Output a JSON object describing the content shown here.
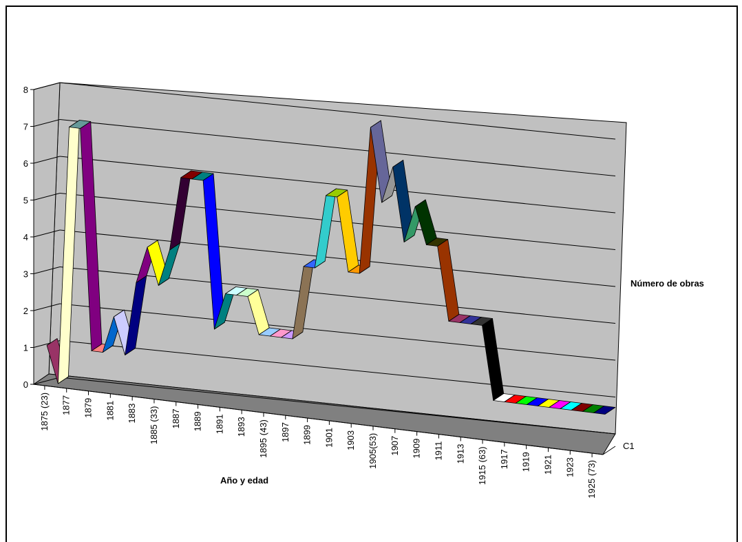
{
  "chart_data": {
    "type": "line",
    "style": "3d-ribbon",
    "xlabel": "Año y edad",
    "ylabel": "",
    "side_label": "Número de obras",
    "depth_label": "C1",
    "ylim": [
      0,
      8
    ],
    "yticks": [
      "0",
      "1",
      "2",
      "3",
      "4",
      "5",
      "6",
      "7",
      "8"
    ],
    "grid": true,
    "tick_labels": [
      "1875 (23)",
      "1877",
      "1879",
      "1881",
      "1883",
      "1885 (33)",
      "1887",
      "1889",
      "1891",
      "1893",
      "1895 (43)",
      "1897",
      "1899",
      "1901",
      "1903",
      "1905(53)",
      "1907",
      "1909",
      "1911",
      "1913",
      "1915 (63)",
      "1917",
      "1919",
      "1921",
      "1923",
      "1925 (73)"
    ],
    "x": [
      1875,
      1876,
      1877,
      1878,
      1879,
      1880,
      1881,
      1882,
      1883,
      1884,
      1885,
      1886,
      1887,
      1888,
      1889,
      1890,
      1891,
      1892,
      1893,
      1894,
      1895,
      1896,
      1897,
      1898,
      1899,
      1900,
      1901,
      1902,
      1903,
      1904,
      1905,
      1906,
      1907,
      1908,
      1909,
      1910,
      1911,
      1912,
      1913,
      1914,
      1915,
      1916,
      1917,
      1918,
      1919,
      1920,
      1921,
      1922,
      1923,
      1924,
      1925
    ],
    "series": [
      {
        "values": [
          1,
          0,
          7,
          7,
          1,
          1,
          2,
          1,
          3,
          4,
          3,
          4,
          6,
          6,
          6,
          2,
          3,
          3,
          3,
          2,
          2,
          2,
          2,
          4,
          4,
          6,
          6,
          4,
          4,
          8,
          6,
          7,
          5,
          6,
          5,
          5,
          3,
          3,
          3,
          3,
          1,
          1,
          1,
          1,
          1,
          1,
          1,
          1,
          1,
          1,
          1
        ]
      }
    ],
    "segment_colors": [
      "#993366",
      "#FFFFCC",
      "#669999",
      "#800080",
      "#FF8080",
      "#0066CC",
      "#CCCCFF",
      "#000080",
      "#800080",
      "#FFFF00",
      "#008080",
      "#330033",
      "#800000",
      "#008080",
      "#0000FF",
      "#008080",
      "#CCFFFF",
      "#CCFFCC",
      "#FFFF99",
      "#99CCFF",
      "#FF99CC",
      "#CC99FF",
      "#8B7355",
      "#3366FF",
      "#33CCCC",
      "#99CC00",
      "#FFCC00",
      "#FF9900",
      "#993300",
      "#666699",
      "#969696",
      "#003366",
      "#339966",
      "#003300",
      "#333300",
      "#993300",
      "#993366",
      "#333399",
      "#333333",
      "#000000",
      "#FFFFFF",
      "#FF0000",
      "#00FF00",
      "#0000FF",
      "#FFFF00",
      "#FF00FF",
      "#00FFFF",
      "#800000",
      "#008000",
      "#000080",
      "#808000"
    ]
  }
}
